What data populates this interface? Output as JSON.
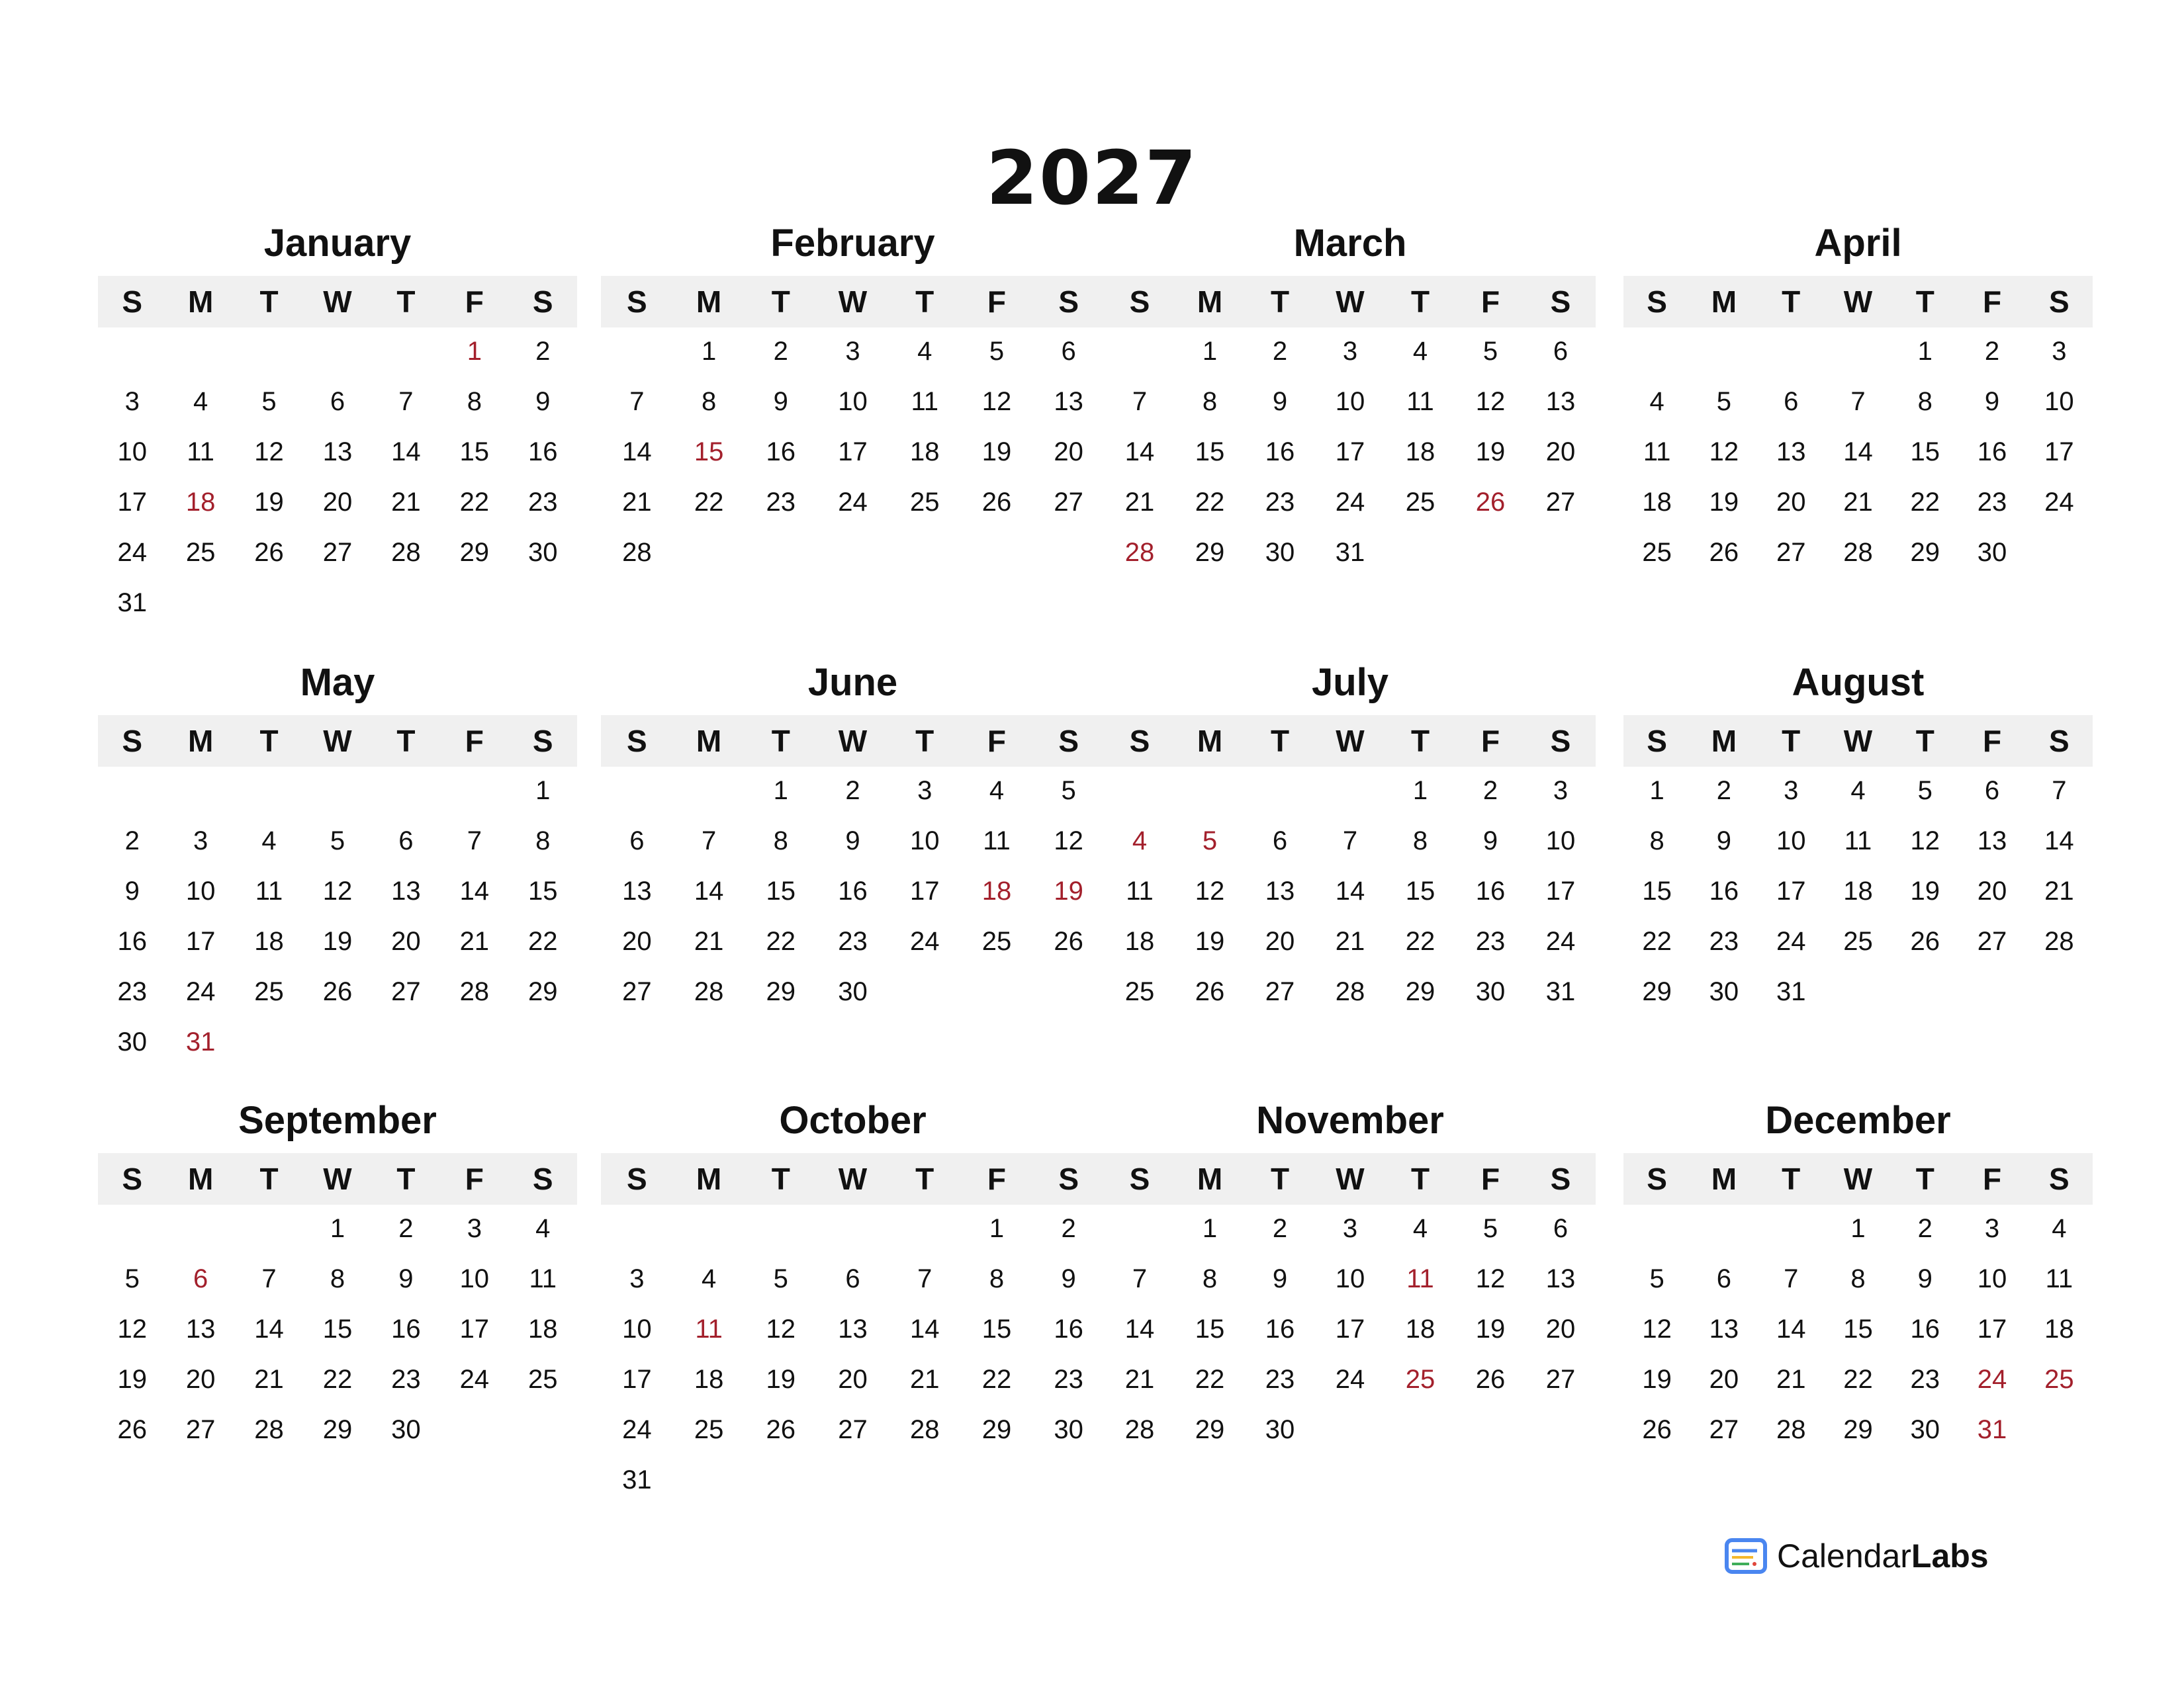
{
  "year": "2027",
  "weekday_labels": [
    "S",
    "M",
    "T",
    "W",
    "T",
    "F",
    "S"
  ],
  "holiday_color": "#a3202c",
  "header_bg": "#f0f0f0",
  "months": [
    {
      "name": "January",
      "holidays": [
        1,
        18
      ],
      "weeks": [
        [
          null,
          null,
          null,
          null,
          null,
          1,
          2
        ],
        [
          3,
          4,
          5,
          6,
          7,
          8,
          9
        ],
        [
          10,
          11,
          12,
          13,
          14,
          15,
          16
        ],
        [
          17,
          18,
          19,
          20,
          21,
          22,
          23
        ],
        [
          24,
          25,
          26,
          27,
          28,
          29,
          30
        ],
        [
          31
        ]
      ]
    },
    {
      "name": "February",
      "holidays": [
        15
      ],
      "weeks": [
        [
          null,
          1,
          2,
          3,
          4,
          5,
          6
        ],
        [
          7,
          8,
          9,
          10,
          11,
          12,
          13
        ],
        [
          14,
          15,
          16,
          17,
          18,
          19,
          20
        ],
        [
          21,
          22,
          23,
          24,
          25,
          26,
          27
        ],
        [
          28
        ]
      ]
    },
    {
      "name": "March",
      "holidays": [
        26,
        28
      ],
      "weeks": [
        [
          null,
          1,
          2,
          3,
          4,
          5,
          6
        ],
        [
          7,
          8,
          9,
          10,
          11,
          12,
          13
        ],
        [
          14,
          15,
          16,
          17,
          18,
          19,
          20
        ],
        [
          21,
          22,
          23,
          24,
          25,
          26,
          27
        ],
        [
          28,
          29,
          30,
          31
        ]
      ]
    },
    {
      "name": "April",
      "holidays": [],
      "weeks": [
        [
          null,
          null,
          null,
          null,
          1,
          2,
          3
        ],
        [
          4,
          5,
          6,
          7,
          8,
          9,
          10
        ],
        [
          11,
          12,
          13,
          14,
          15,
          16,
          17
        ],
        [
          18,
          19,
          20,
          21,
          22,
          23,
          24
        ],
        [
          25,
          26,
          27,
          28,
          29,
          30
        ]
      ]
    },
    {
      "name": "May",
      "holidays": [
        31
      ],
      "weeks": [
        [
          null,
          null,
          null,
          null,
          null,
          null,
          1
        ],
        [
          2,
          3,
          4,
          5,
          6,
          7,
          8
        ],
        [
          9,
          10,
          11,
          12,
          13,
          14,
          15
        ],
        [
          16,
          17,
          18,
          19,
          20,
          21,
          22
        ],
        [
          23,
          24,
          25,
          26,
          27,
          28,
          29
        ],
        [
          30,
          31
        ]
      ]
    },
    {
      "name": "June",
      "holidays": [
        18,
        19
      ],
      "weeks": [
        [
          null,
          null,
          1,
          2,
          3,
          4,
          5
        ],
        [
          6,
          7,
          8,
          9,
          10,
          11,
          12
        ],
        [
          13,
          14,
          15,
          16,
          17,
          18,
          19
        ],
        [
          20,
          21,
          22,
          23,
          24,
          25,
          26
        ],
        [
          27,
          28,
          29,
          30
        ]
      ]
    },
    {
      "name": "July",
      "holidays": [
        4,
        5
      ],
      "weeks": [
        [
          null,
          null,
          null,
          null,
          1,
          2,
          3
        ],
        [
          4,
          5,
          6,
          7,
          8,
          9,
          10
        ],
        [
          11,
          12,
          13,
          14,
          15,
          16,
          17
        ],
        [
          18,
          19,
          20,
          21,
          22,
          23,
          24
        ],
        [
          25,
          26,
          27,
          28,
          29,
          30,
          31
        ]
      ]
    },
    {
      "name": "August",
      "holidays": [],
      "weeks": [
        [
          1,
          2,
          3,
          4,
          5,
          6,
          7
        ],
        [
          8,
          9,
          10,
          11,
          12,
          13,
          14
        ],
        [
          15,
          16,
          17,
          18,
          19,
          20,
          21
        ],
        [
          22,
          23,
          24,
          25,
          26,
          27,
          28
        ],
        [
          29,
          30,
          31
        ]
      ]
    },
    {
      "name": "September",
      "holidays": [
        6
      ],
      "weeks": [
        [
          null,
          null,
          null,
          1,
          2,
          3,
          4
        ],
        [
          5,
          6,
          7,
          8,
          9,
          10,
          11
        ],
        [
          12,
          13,
          14,
          15,
          16,
          17,
          18
        ],
        [
          19,
          20,
          21,
          22,
          23,
          24,
          25
        ],
        [
          26,
          27,
          28,
          29,
          30
        ]
      ]
    },
    {
      "name": "October",
      "holidays": [
        11
      ],
      "weeks": [
        [
          null,
          null,
          null,
          null,
          null,
          1,
          2
        ],
        [
          3,
          4,
          5,
          6,
          7,
          8,
          9
        ],
        [
          10,
          11,
          12,
          13,
          14,
          15,
          16
        ],
        [
          17,
          18,
          19,
          20,
          21,
          22,
          23
        ],
        [
          24,
          25,
          26,
          27,
          28,
          29,
          30
        ],
        [
          31
        ]
      ]
    },
    {
      "name": "November",
      "holidays": [
        11,
        25
      ],
      "weeks": [
        [
          null,
          1,
          2,
          3,
          4,
          5,
          6
        ],
        [
          7,
          8,
          9,
          10,
          11,
          12,
          13
        ],
        [
          14,
          15,
          16,
          17,
          18,
          19,
          20
        ],
        [
          21,
          22,
          23,
          24,
          25,
          26,
          27
        ],
        [
          28,
          29,
          30
        ]
      ]
    },
    {
      "name": "December",
      "holidays": [
        24,
        25,
        31
      ],
      "weeks": [
        [
          null,
          null,
          null,
          1,
          2,
          3,
          4
        ],
        [
          5,
          6,
          7,
          8,
          9,
          10,
          11
        ],
        [
          12,
          13,
          14,
          15,
          16,
          17,
          18
        ],
        [
          19,
          20,
          21,
          22,
          23,
          24,
          25
        ],
        [
          26,
          27,
          28,
          29,
          30,
          31
        ]
      ]
    }
  ],
  "logo": {
    "text_regular": "Calendar",
    "text_bold": "Labs",
    "colors": {
      "frame": "#4a86f0",
      "line1": "#f5b82e",
      "line2": "#3fae5a",
      "dot": "#e0473c"
    }
  }
}
